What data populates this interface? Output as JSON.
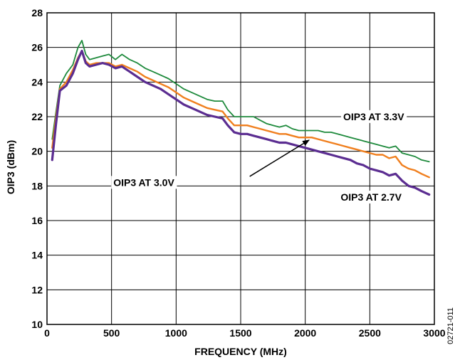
{
  "chart_data": {
    "type": "line",
    "title": "",
    "xlabel": "FREQUENCY (MHz)",
    "ylabel": "OIP3 (dBm)",
    "xlim": [
      0,
      3000
    ],
    "ylim": [
      10,
      28
    ],
    "x_ticks": [
      0,
      500,
      1000,
      1500,
      2000,
      2500,
      3000
    ],
    "y_ticks": [
      10,
      12,
      14,
      16,
      18,
      20,
      22,
      24,
      26,
      28
    ],
    "grid": true,
    "series": [
      {
        "name": "OIP3 AT 3.3V",
        "color": "#1e8a3c",
        "points": [
          [
            40,
            20.7
          ],
          [
            70,
            22.3
          ],
          [
            100,
            23.8
          ],
          [
            150,
            24.5
          ],
          [
            200,
            25.0
          ],
          [
            240,
            26.0
          ],
          [
            270,
            26.4
          ],
          [
            300,
            25.6
          ],
          [
            330,
            25.3
          ],
          [
            380,
            25.4
          ],
          [
            430,
            25.5
          ],
          [
            480,
            25.6
          ],
          [
            530,
            25.3
          ],
          [
            580,
            25.6
          ],
          [
            640,
            25.3
          ],
          [
            700,
            25.1
          ],
          [
            760,
            24.8
          ],
          [
            820,
            24.6
          ],
          [
            880,
            24.4
          ],
          [
            940,
            24.2
          ],
          [
            1000,
            23.9
          ],
          [
            1060,
            23.6
          ],
          [
            1120,
            23.4
          ],
          [
            1180,
            23.2
          ],
          [
            1240,
            23.0
          ],
          [
            1300,
            22.9
          ],
          [
            1360,
            22.9
          ],
          [
            1400,
            22.4
          ],
          [
            1450,
            22.0
          ],
          [
            1500,
            22.0
          ],
          [
            1550,
            22.0
          ],
          [
            1600,
            22.0
          ],
          [
            1650,
            21.8
          ],
          [
            1700,
            21.6
          ],
          [
            1750,
            21.5
          ],
          [
            1800,
            21.4
          ],
          [
            1850,
            21.5
          ],
          [
            1900,
            21.3
          ],
          [
            1950,
            21.2
          ],
          [
            2000,
            21.2
          ],
          [
            2050,
            21.2
          ],
          [
            2100,
            21.2
          ],
          [
            2150,
            21.1
          ],
          [
            2200,
            21.1
          ],
          [
            2250,
            21.0
          ],
          [
            2300,
            20.9
          ],
          [
            2350,
            20.8
          ],
          [
            2400,
            20.7
          ],
          [
            2450,
            20.6
          ],
          [
            2500,
            20.5
          ],
          [
            2550,
            20.4
          ],
          [
            2600,
            20.3
          ],
          [
            2650,
            20.2
          ],
          [
            2700,
            20.3
          ],
          [
            2750,
            19.9
          ],
          [
            2800,
            19.8
          ],
          [
            2850,
            19.7
          ],
          [
            2900,
            19.5
          ],
          [
            2960,
            19.4
          ]
        ]
      },
      {
        "name": "OIP3 AT 3.0V",
        "color": "#f07f1e",
        "points": [
          [
            40,
            20.2
          ],
          [
            70,
            22.0
          ],
          [
            100,
            23.6
          ],
          [
            150,
            24.0
          ],
          [
            200,
            24.7
          ],
          [
            240,
            25.4
          ],
          [
            270,
            25.8
          ],
          [
            300,
            25.2
          ],
          [
            330,
            25.0
          ],
          [
            380,
            25.1
          ],
          [
            430,
            25.1
          ],
          [
            480,
            25.1
          ],
          [
            530,
            24.9
          ],
          [
            580,
            25.0
          ],
          [
            640,
            24.8
          ],
          [
            700,
            24.6
          ],
          [
            760,
            24.3
          ],
          [
            820,
            24.1
          ],
          [
            880,
            23.9
          ],
          [
            940,
            23.7
          ],
          [
            1000,
            23.4
          ],
          [
            1060,
            23.1
          ],
          [
            1120,
            22.9
          ],
          [
            1180,
            22.7
          ],
          [
            1240,
            22.5
          ],
          [
            1300,
            22.4
          ],
          [
            1360,
            22.3
          ],
          [
            1400,
            21.9
          ],
          [
            1450,
            21.5
          ],
          [
            1500,
            21.5
          ],
          [
            1550,
            21.5
          ],
          [
            1600,
            21.4
          ],
          [
            1650,
            21.3
          ],
          [
            1700,
            21.2
          ],
          [
            1750,
            21.1
          ],
          [
            1800,
            21.0
          ],
          [
            1850,
            21.0
          ],
          [
            1900,
            20.9
          ],
          [
            1950,
            20.8
          ],
          [
            2000,
            20.8
          ],
          [
            2050,
            20.8
          ],
          [
            2100,
            20.7
          ],
          [
            2150,
            20.6
          ],
          [
            2200,
            20.5
          ],
          [
            2250,
            20.4
          ],
          [
            2300,
            20.3
          ],
          [
            2350,
            20.2
          ],
          [
            2400,
            20.1
          ],
          [
            2450,
            20.0
          ],
          [
            2500,
            19.9
          ],
          [
            2550,
            19.8
          ],
          [
            2600,
            19.8
          ],
          [
            2650,
            19.6
          ],
          [
            2700,
            19.7
          ],
          [
            2750,
            19.2
          ],
          [
            2800,
            19.0
          ],
          [
            2850,
            18.9
          ],
          [
            2900,
            18.7
          ],
          [
            2960,
            18.5
          ]
        ]
      },
      {
        "name": "OIP3 AT 2.7V",
        "color": "#5b2d91",
        "points": [
          [
            40,
            19.5
          ],
          [
            70,
            21.6
          ],
          [
            100,
            23.5
          ],
          [
            150,
            23.8
          ],
          [
            200,
            24.5
          ],
          [
            240,
            25.3
          ],
          [
            270,
            25.8
          ],
          [
            300,
            25.1
          ],
          [
            330,
            24.9
          ],
          [
            380,
            25.0
          ],
          [
            430,
            25.1
          ],
          [
            480,
            25.0
          ],
          [
            530,
            24.8
          ],
          [
            580,
            24.9
          ],
          [
            640,
            24.6
          ],
          [
            700,
            24.3
          ],
          [
            760,
            24.0
          ],
          [
            820,
            23.8
          ],
          [
            880,
            23.6
          ],
          [
            940,
            23.3
          ],
          [
            1000,
            23.0
          ],
          [
            1060,
            22.7
          ],
          [
            1120,
            22.5
          ],
          [
            1180,
            22.3
          ],
          [
            1240,
            22.1
          ],
          [
            1300,
            22.0
          ],
          [
            1360,
            21.9
          ],
          [
            1400,
            21.5
          ],
          [
            1450,
            21.1
          ],
          [
            1500,
            21.0
          ],
          [
            1550,
            21.0
          ],
          [
            1600,
            20.9
          ],
          [
            1650,
            20.8
          ],
          [
            1700,
            20.7
          ],
          [
            1750,
            20.6
          ],
          [
            1800,
            20.5
          ],
          [
            1850,
            20.5
          ],
          [
            1900,
            20.4
          ],
          [
            1950,
            20.3
          ],
          [
            2000,
            20.2
          ],
          [
            2050,
            20.1
          ],
          [
            2100,
            20.0
          ],
          [
            2150,
            19.9
          ],
          [
            2200,
            19.8
          ],
          [
            2250,
            19.7
          ],
          [
            2300,
            19.6
          ],
          [
            2350,
            19.5
          ],
          [
            2400,
            19.3
          ],
          [
            2450,
            19.2
          ],
          [
            2500,
            19.0
          ],
          [
            2550,
            18.9
          ],
          [
            2600,
            18.8
          ],
          [
            2650,
            18.6
          ],
          [
            2700,
            18.7
          ],
          [
            2750,
            18.3
          ],
          [
            2800,
            18.0
          ],
          [
            2850,
            17.9
          ],
          [
            2900,
            17.7
          ],
          [
            2960,
            17.5
          ]
        ]
      }
    ],
    "annotations": [
      {
        "text": "OIP3 AT 3.3V",
        "x": 2530,
        "y": 21.8
      },
      {
        "text": "OIP3 AT 3.0V",
        "x": 750,
        "y": 18.0
      },
      {
        "text": "OIP3 AT 2.7V",
        "x": 2510,
        "y": 17.15
      }
    ],
    "arrow": {
      "from": [
        1570,
        18.55
      ],
      "to": [
        2030,
        20.65
      ]
    },
    "figure_code": "02721-011"
  }
}
